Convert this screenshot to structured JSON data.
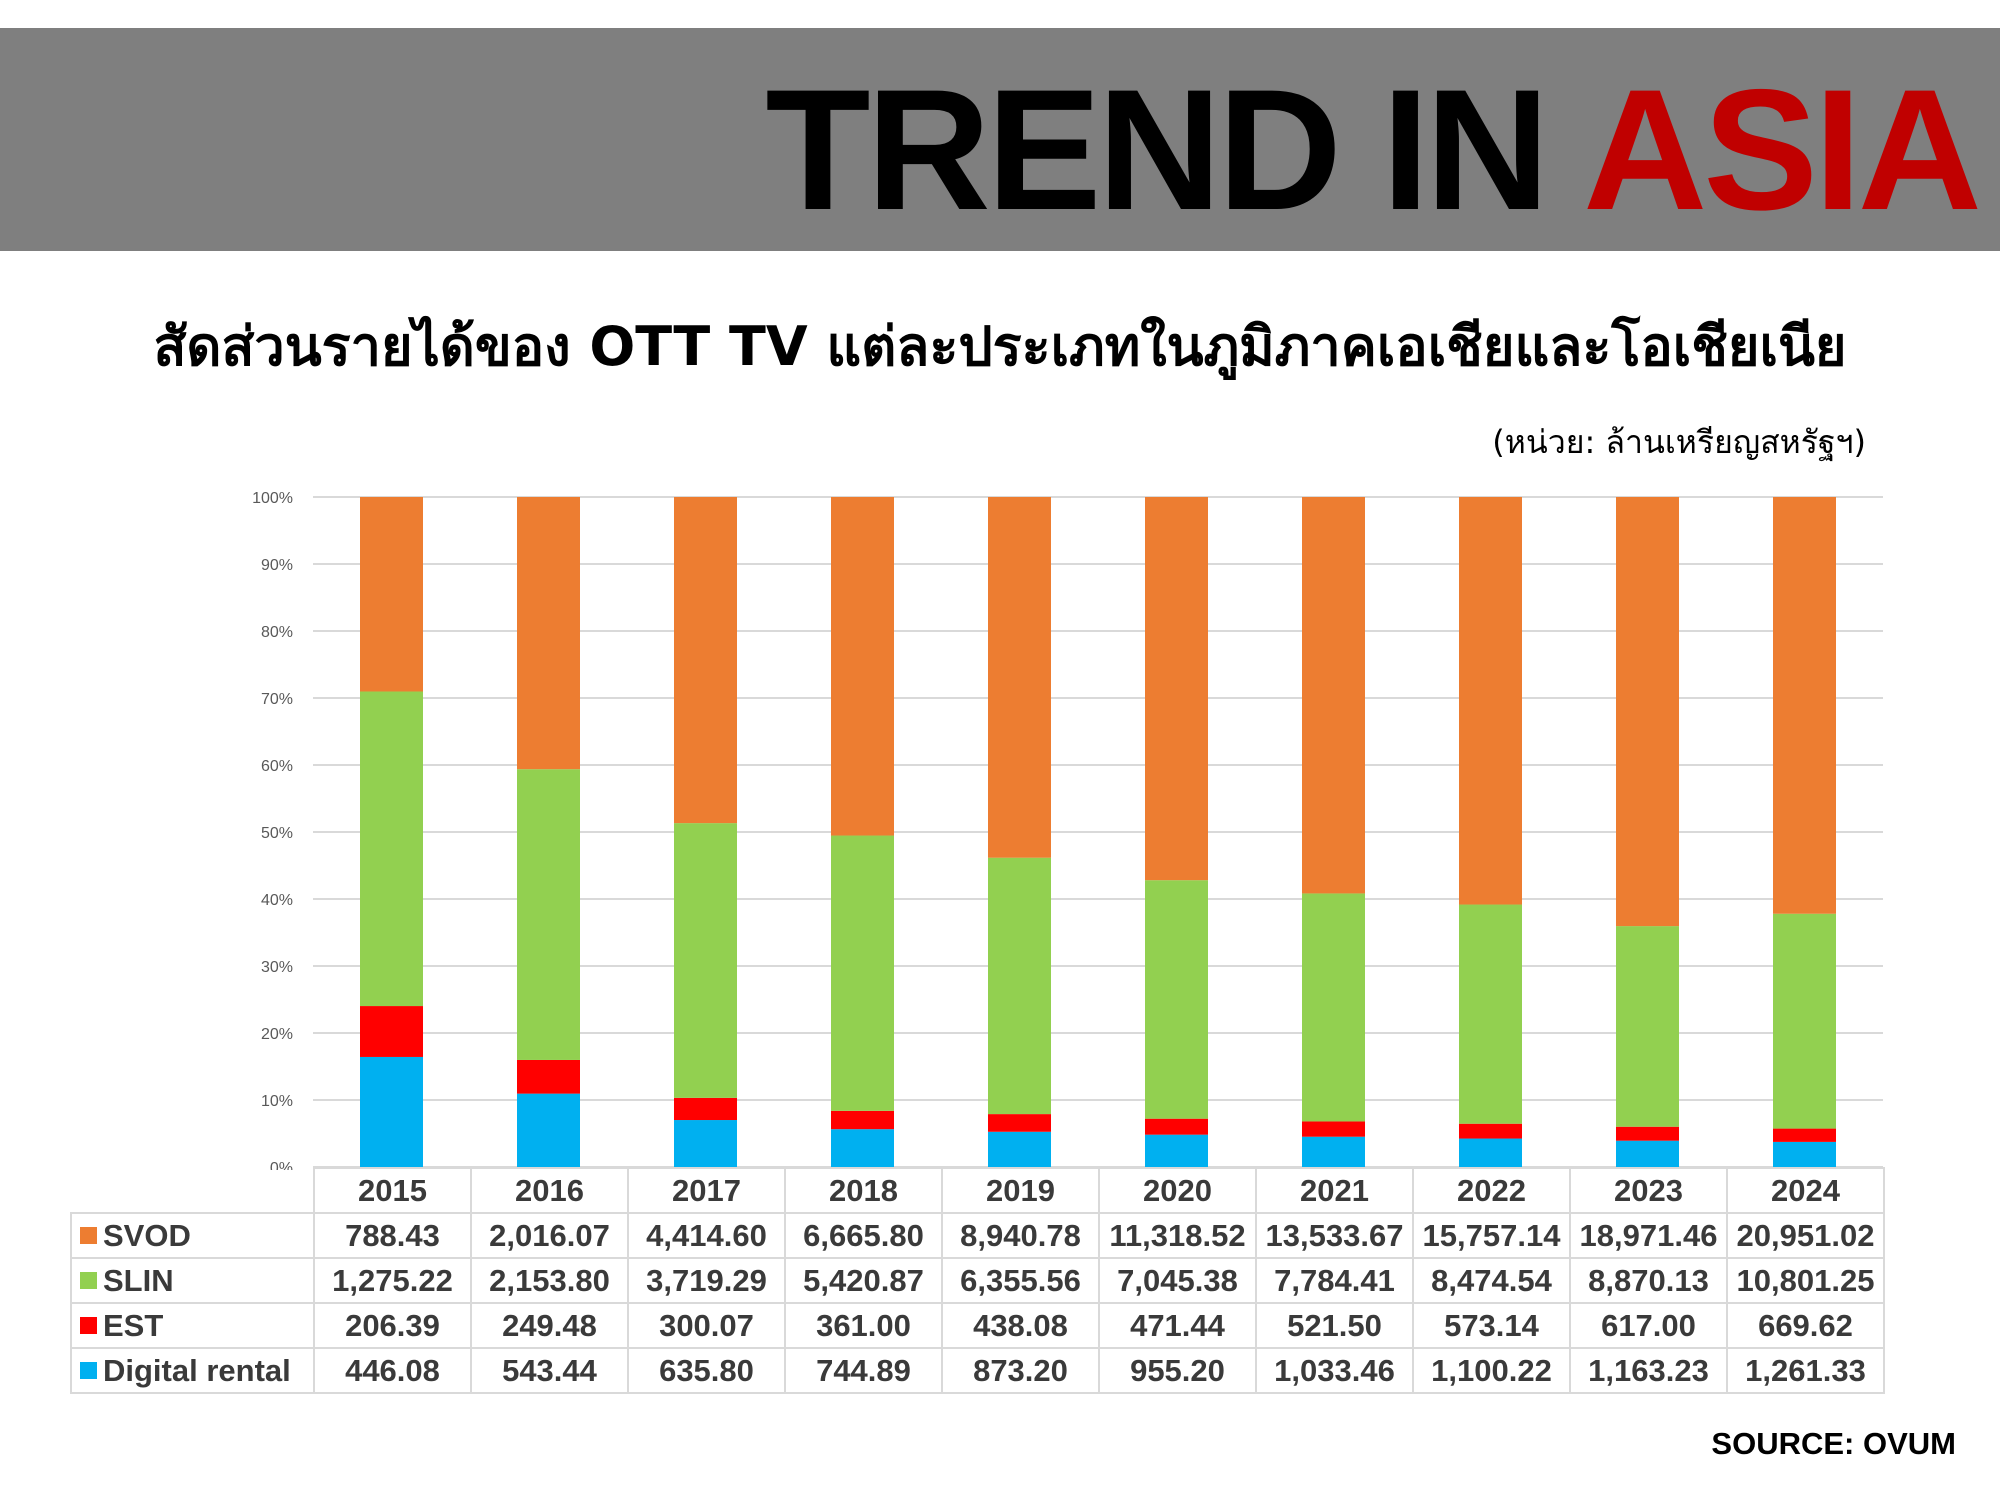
{
  "header": {
    "title_main": "TREND IN ",
    "title_accent": "ASIA",
    "subtitle": "สัดส่วนรายได้ของ OTT TV แต่ละประเภทในภูมิภาคเอเชียและโอเชียเนีย",
    "unit_note": "(หน่วย: ล้านเหรียญสหรัฐฯ)",
    "banner_color": "#7f7f7f",
    "accent_color": "#c00000"
  },
  "source": "SOURCE: OVUM",
  "chart_data": {
    "type": "bar",
    "stacked": true,
    "normalized": true,
    "categories": [
      "2015",
      "2016",
      "2017",
      "2018",
      "2019",
      "2020",
      "2021",
      "2022",
      "2023",
      "2024"
    ],
    "y_tick_labels": [
      "0%",
      "10%",
      "20%",
      "30%",
      "40%",
      "50%",
      "60%",
      "70%",
      "80%",
      "90%",
      "100%"
    ],
    "ylim": [
      0,
      100
    ],
    "grid": true,
    "legend_placement": "data-table",
    "series": [
      {
        "name": "SVOD",
        "color": "#ed7d31",
        "values": [
          788.43,
          2016.07,
          4414.6,
          6665.8,
          8940.78,
          11318.52,
          13533.67,
          15757.14,
          18971.46,
          20951.02
        ],
        "labels": [
          "788.43",
          "2,016.07",
          "4,414.60",
          "6,665.80",
          "8,940.78",
          "11,318.52",
          "13,533.67",
          "15,757.14",
          "18,971.46",
          "20,951.02"
        ]
      },
      {
        "name": "SLIN",
        "color": "#92d050",
        "values": [
          1275.22,
          2153.8,
          3719.29,
          5420.87,
          6355.56,
          7045.38,
          7784.41,
          8474.54,
          8870.13,
          10801.25
        ],
        "labels": [
          "1,275.22",
          "2,153.80",
          "3,719.29",
          "5,420.87",
          "6,355.56",
          "7,045.38",
          "7,784.41",
          "8,474.54",
          "8,870.13",
          "10,801.25"
        ]
      },
      {
        "name": "EST",
        "color": "#ff0000",
        "values": [
          206.39,
          249.48,
          300.07,
          361.0,
          438.08,
          471.44,
          521.5,
          573.14,
          617.0,
          669.62
        ],
        "labels": [
          "206.39",
          "249.48",
          "300.07",
          "361.00",
          "438.08",
          "471.44",
          "521.50",
          "573.14",
          "617.00",
          "669.62"
        ]
      },
      {
        "name": "Digital rental",
        "color": "#00b0f0",
        "values": [
          446.08,
          543.44,
          635.8,
          744.89,
          873.2,
          955.2,
          1033.46,
          1100.22,
          1163.23,
          1261.33
        ],
        "labels": [
          "446.08",
          "543.44",
          "635.80",
          "744.89",
          "873.20",
          "955.20",
          "1,033.46",
          "1,100.22",
          "1,163.23",
          "1,261.33"
        ]
      }
    ]
  }
}
